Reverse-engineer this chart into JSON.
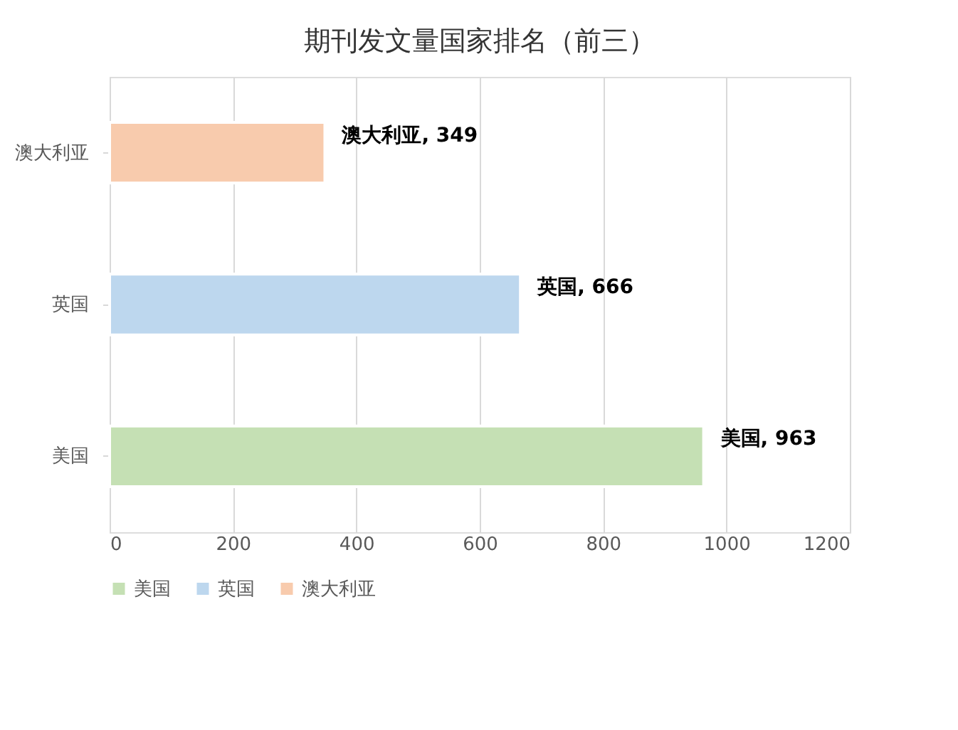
{
  "chart_data": {
    "type": "bar",
    "orientation": "horizontal",
    "title": "期刊发文量国家排名（前三）",
    "categories": [
      "澳大利亚",
      "英国",
      "美国"
    ],
    "series": [
      {
        "name": "美国",
        "color": "#c5e0b4",
        "values": [
          null,
          null,
          963
        ],
        "value_labels": [
          null,
          null,
          "美国, 963"
        ]
      },
      {
        "name": "英国",
        "color": "#bdd7ee",
        "values": [
          null,
          666,
          null
        ],
        "value_labels": [
          null,
          "英国, 666",
          null
        ]
      },
      {
        "name": "澳大利亚",
        "color": "#f8cbad",
        "values": [
          349,
          null,
          null
        ],
        "value_labels": [
          "澳大利亚, 349",
          null,
          null
        ]
      }
    ],
    "xlim": [
      0,
      1200
    ],
    "xticks": [
      0,
      200,
      400,
      600,
      800,
      1000,
      1200
    ],
    "grid": "x",
    "legend": "bottom"
  }
}
